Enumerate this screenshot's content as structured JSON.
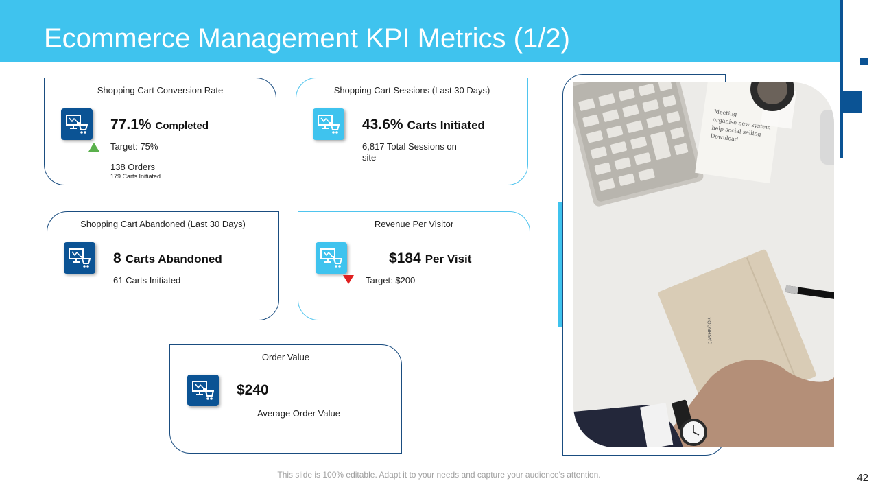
{
  "slide": {
    "title": "Ecommerce Management KPI Metrics (1/2)",
    "footer": "This slide is 100% editable. Adapt it to your needs and capture your audience's attention.",
    "page_number": "42"
  },
  "colors": {
    "header": "#3fc3ee",
    "dark_blue": "#0b5394",
    "up": "#5ab04c",
    "down": "#e02020"
  },
  "cards": {
    "conversion": {
      "title": "Shopping Cart Conversion Rate",
      "value": "77.1%",
      "unit": "Completed",
      "target": "Target: 75%",
      "orders": "138 Orders",
      "carts": "179 Carts Initiated",
      "trend_icon": "triangle-up-icon"
    },
    "sessions": {
      "title": "Shopping Cart Sessions (Last 30 Days)",
      "value": "43.6%",
      "unit": "Carts Initiated",
      "line1": "6,817 Total Sessions on",
      "line2": "site"
    },
    "abandoned": {
      "title": "Shopping Cart Abandoned (Last 30 Days)",
      "value": "8",
      "unit": "Carts Abandoned",
      "line1": "61 Carts Initiated"
    },
    "revenue": {
      "title": "Revenue Per Visitor",
      "value": "$184",
      "unit": "Per Visit",
      "target": "Target: $200",
      "trend_icon": "triangle-down-icon"
    },
    "order_value": {
      "title": "Order Value",
      "value": "$240",
      "line1": "Average Order Value"
    }
  },
  "photo": {
    "card_text": "CASHBOOK",
    "note_lines": [
      "Meeting",
      "organise new system",
      "help social selling",
      "Download"
    ]
  }
}
